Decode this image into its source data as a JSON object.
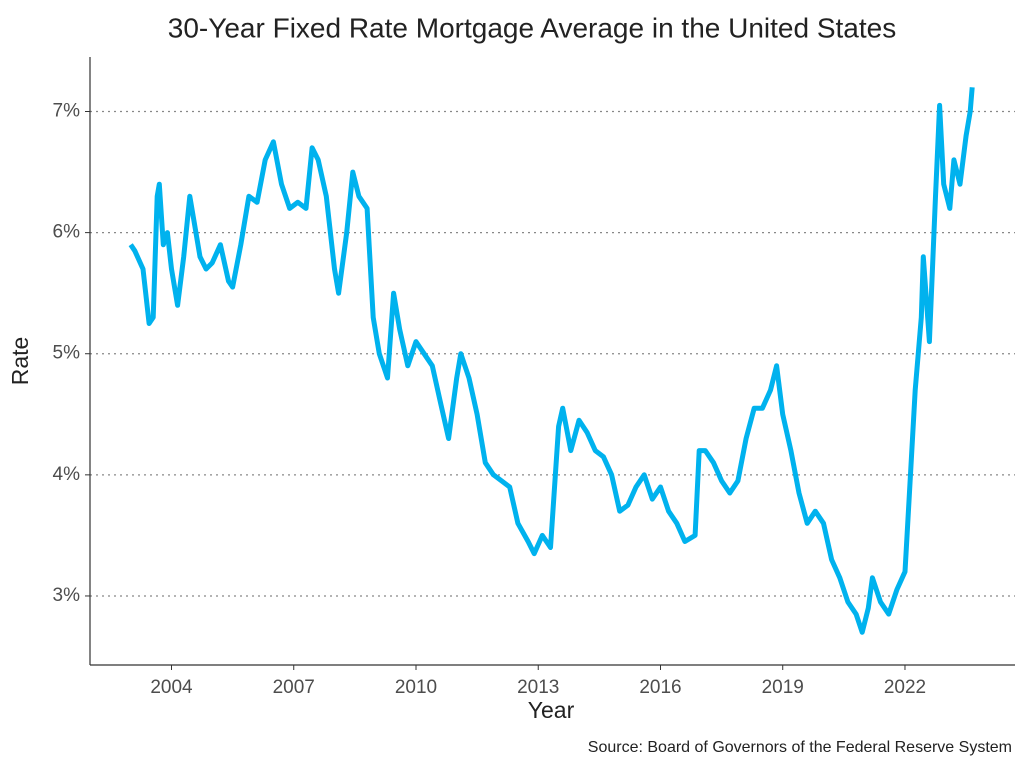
{
  "chart_data": {
    "type": "line",
    "title": "30-Year Fixed Rate Mortgage Average in the United States",
    "xlabel": "Year",
    "ylabel": "Rate",
    "caption": "Source: Board of Governors of the Federal Reserve System",
    "x": [
      2003.0,
      2003.1,
      2003.3,
      2003.45,
      2003.55,
      2003.65,
      2003.7,
      2003.8,
      2003.9,
      2004.0,
      2004.15,
      2004.3,
      2004.45,
      2004.55,
      2004.7,
      2004.85,
      2005.0,
      2005.2,
      2005.4,
      2005.5,
      2005.7,
      2005.9,
      2006.1,
      2006.3,
      2006.5,
      2006.7,
      2006.9,
      2007.1,
      2007.3,
      2007.45,
      2007.6,
      2007.8,
      2008.0,
      2008.1,
      2008.3,
      2008.45,
      2008.6,
      2008.8,
      2008.95,
      2009.1,
      2009.3,
      2009.45,
      2009.6,
      2009.8,
      2010.0,
      2010.2,
      2010.4,
      2010.6,
      2010.8,
      2011.0,
      2011.1,
      2011.3,
      2011.5,
      2011.7,
      2011.9,
      2012.1,
      2012.3,
      2012.5,
      2012.75,
      2012.9,
      2013.1,
      2013.3,
      2013.5,
      2013.6,
      2013.8,
      2014.0,
      2014.2,
      2014.4,
      2014.6,
      2014.8,
      2015.0,
      2015.2,
      2015.4,
      2015.6,
      2015.8,
      2016.0,
      2016.2,
      2016.4,
      2016.6,
      2016.85,
      2016.95,
      2017.1,
      2017.3,
      2017.5,
      2017.7,
      2017.9,
      2018.1,
      2018.3,
      2018.5,
      2018.7,
      2018.85,
      2019.0,
      2019.2,
      2019.4,
      2019.6,
      2019.8,
      2020.0,
      2020.2,
      2020.4,
      2020.6,
      2020.8,
      2020.95,
      2021.1,
      2021.2,
      2021.4,
      2021.6,
      2021.8,
      2022.0,
      2022.1,
      2022.25,
      2022.4,
      2022.45,
      2022.6,
      2022.75,
      2022.85,
      2022.95,
      2023.1,
      2023.2,
      2023.35,
      2023.5,
      2023.6,
      2023.65
    ],
    "series": [
      {
        "name": "Rate",
        "color": "#00b2ee",
        "values": [
          5.9,
          5.85,
          5.7,
          5.25,
          5.3,
          6.3,
          6.4,
          5.9,
          6.0,
          5.7,
          5.4,
          5.8,
          6.3,
          6.1,
          5.8,
          5.7,
          5.75,
          5.9,
          5.6,
          5.55,
          5.9,
          6.3,
          6.25,
          6.6,
          6.75,
          6.4,
          6.2,
          6.25,
          6.2,
          6.7,
          6.6,
          6.3,
          5.7,
          5.5,
          6.0,
          6.5,
          6.3,
          6.2,
          5.3,
          5.0,
          4.8,
          5.5,
          5.2,
          4.9,
          5.1,
          5.0,
          4.9,
          4.6,
          4.3,
          4.8,
          5.0,
          4.8,
          4.5,
          4.1,
          4.0,
          3.95,
          3.9,
          3.6,
          3.45,
          3.35,
          3.5,
          3.4,
          4.4,
          4.55,
          4.2,
          4.45,
          4.35,
          4.2,
          4.15,
          4.0,
          3.7,
          3.75,
          3.9,
          4.0,
          3.8,
          3.9,
          3.7,
          3.6,
          3.45,
          3.5,
          4.2,
          4.2,
          4.1,
          3.95,
          3.85,
          3.95,
          4.3,
          4.55,
          4.55,
          4.7,
          4.9,
          4.5,
          4.2,
          3.85,
          3.6,
          3.7,
          3.6,
          3.3,
          3.15,
          2.95,
          2.85,
          2.7,
          2.9,
          3.15,
          2.95,
          2.85,
          3.05,
          3.2,
          3.8,
          4.7,
          5.3,
          5.8,
          5.1,
          6.3,
          7.05,
          6.4,
          6.2,
          6.6,
          6.4,
          6.8,
          7.0,
          7.2
        ]
      }
    ],
    "xlim": [
      2002,
      2024.7
    ],
    "xticks": [
      2004,
      2007,
      2010,
      2013,
      2016,
      2019,
      2022
    ],
    "ylim": [
      2.43,
      7.45
    ],
    "yticks": [
      {
        "value": 3,
        "label": "3%"
      },
      {
        "value": 4,
        "label": "4%"
      },
      {
        "value": 5,
        "label": "5%"
      },
      {
        "value": 6,
        "label": "6%"
      },
      {
        "value": 7,
        "label": "7%"
      }
    ],
    "grid": true
  }
}
